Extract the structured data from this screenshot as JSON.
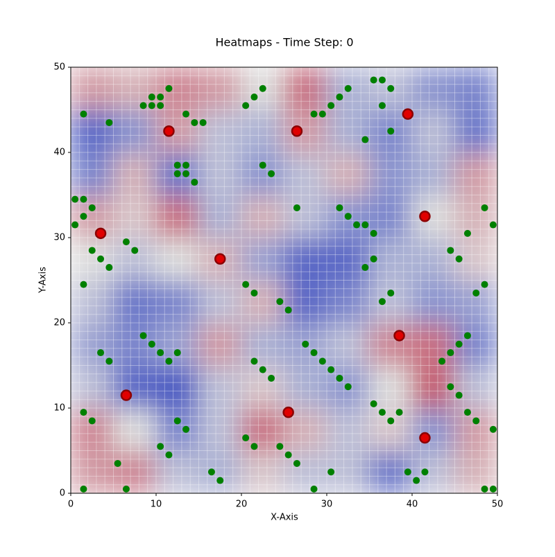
{
  "chart_data": {
    "type": "heatmap",
    "title": "Heatmaps - Time Step: 0",
    "xlabel": "X-Axis",
    "ylabel": "Y-Axis",
    "xlim": [
      0,
      50
    ],
    "ylim": [
      0,
      50
    ],
    "xticks": [
      0,
      10,
      20,
      30,
      40,
      50
    ],
    "yticks": [
      0,
      10,
      20,
      30,
      40,
      50
    ],
    "colormap": [
      "#3b4cc0",
      "#dddddd",
      "#b40426"
    ],
    "zlim": [
      -1,
      1
    ],
    "z": [
      [
        0.3,
        0.4,
        -0.2,
        -0.3,
        0.1,
        -0.2,
        -0.2,
        -0.7,
        -0.2,
        0.2
      ],
      [
        0.4,
        0,
        -0.6,
        -0.2,
        0.5,
        0.2,
        -0.2,
        0.1,
        -0.5,
        0.3
      ],
      [
        -0.2,
        -0.8,
        -0.9,
        -0.2,
        0.1,
        -0.3,
        -0.5,
        0,
        0.6,
        -0.2
      ],
      [
        -0.4,
        -0.6,
        -0.4,
        0.3,
        -0.3,
        -0.4,
        -0.2,
        0.4,
        0.5,
        -0.6
      ],
      [
        -0.2,
        -0.7,
        -0.6,
        -0.2,
        0.2,
        -0.8,
        -0.6,
        -0.2,
        -0.5,
        -0.4
      ],
      [
        0,
        -0.2,
        0,
        0.2,
        -0.4,
        -0.8,
        -0.8,
        -0.3,
        -0.3,
        0.1
      ],
      [
        0.3,
        0.1,
        0.5,
        -0.3,
        0.2,
        -0.2,
        -0.5,
        -0.6,
        0,
        0.2
      ],
      [
        -0.6,
        0.2,
        -0.7,
        -0.2,
        -0.5,
        -0.2,
        0.2,
        -0.5,
        -0.3,
        0.3
      ],
      [
        -0.8,
        -0.5,
        0.3,
        -0.2,
        -0.3,
        0.3,
        -0.3,
        -0.6,
        -0.2,
        -0.7
      ],
      [
        0.3,
        0.2,
        0.4,
        0.3,
        0,
        0.5,
        -0.3,
        -0.2,
        -0.5,
        -0.6
      ]
    ],
    "series": [
      {
        "color": "#008000",
        "x": [
          1.5,
          4.5,
          8.5,
          9.5,
          10.5,
          9.5,
          10.5,
          11.5,
          13.5,
          14.5,
          15.5,
          12.5,
          13.5,
          12.5,
          13.5,
          14.5,
          20.5,
          21.5,
          22.5,
          28.5,
          29.5,
          30.5,
          31.5,
          32.5,
          35.5,
          36.5,
          37.5,
          36.5,
          37.5,
          34.5,
          0.5,
          1.5,
          2.5,
          1.5,
          0.5,
          2.5,
          3.5,
          4.5,
          1.5,
          6.5,
          7.5,
          22.5,
          23.5,
          26.5,
          31.5,
          32.5,
          33.5,
          34.5,
          35.5,
          44.5,
          45.5,
          46.5,
          48.5,
          49.5,
          8.5,
          9.5,
          10.5,
          11.5,
          12.5,
          3.5,
          4.5,
          1.5,
          2.5,
          12.5,
          13.5,
          10.5,
          11.5,
          21.5,
          22.5,
          23.5,
          27.5,
          28.5,
          29.5,
          30.5,
          31.5,
          32.5,
          24.5,
          25.5,
          26.5,
          20.5,
          21.5,
          35.5,
          36.5,
          37.5,
          38.5,
          44.5,
          45.5,
          46.5,
          47.5,
          49.5,
          39.5,
          40.5,
          41.5,
          43.5,
          44.5,
          45.5,
          46.5,
          47.5,
          48.5,
          36.5,
          37.5,
          34.5,
          35.5,
          20.5,
          21.5,
          24.5,
          25.5,
          1.5,
          5.5,
          6.5,
          16.5,
          17.5,
          28.5,
          30.5,
          48.5,
          49.5
        ],
        "values": [
          44.5,
          43.5,
          45.5,
          45.5,
          45.5,
          46.5,
          46.5,
          47.5,
          44.5,
          43.5,
          43.5,
          38.5,
          38.5,
          37.5,
          37.5,
          36.5,
          45.5,
          46.5,
          47.5,
          44.5,
          44.5,
          45.5,
          46.5,
          47.5,
          48.5,
          48.5,
          47.5,
          45.5,
          42.5,
          41.5,
          34.5,
          34.5,
          33.5,
          32.5,
          31.5,
          28.5,
          27.5,
          26.5,
          24.5,
          29.5,
          28.5,
          38.5,
          37.5,
          33.5,
          33.5,
          32.5,
          31.5,
          31.5,
          30.5,
          28.5,
          27.5,
          30.5,
          33.5,
          31.5,
          18.5,
          17.5,
          16.5,
          15.5,
          16.5,
          16.5,
          15.5,
          9.5,
          8.5,
          8.5,
          7.5,
          5.5,
          4.5,
          15.5,
          14.5,
          13.5,
          17.5,
          16.5,
          15.5,
          14.5,
          13.5,
          12.5,
          5.5,
          4.5,
          3.5,
          6.5,
          5.5,
          10.5,
          9.5,
          8.5,
          9.5,
          12.5,
          11.5,
          9.5,
          8.5,
          7.5,
          2.5,
          1.5,
          2.5,
          15.5,
          16.5,
          17.5,
          18.5,
          23.5,
          24.5,
          22.5,
          23.5,
          26.5,
          27.5,
          24.5,
          23.5,
          22.5,
          21.5,
          0.5,
          3.5,
          0.5,
          2.5,
          1.5,
          0.5,
          2.5,
          0.5,
          0.5
        ]
      },
      {
        "color": "#e00000",
        "edgecolor": "#8b0000",
        "x": [
          11.5,
          26.5,
          39.5,
          3.5,
          17.5,
          41.5,
          38.5,
          6.5,
          25.5,
          41.5
        ],
        "values": [
          42.5,
          42.5,
          44.5,
          30.5,
          27.5,
          32.5,
          18.5,
          11.5,
          9.5,
          6.5
        ]
      }
    ]
  }
}
